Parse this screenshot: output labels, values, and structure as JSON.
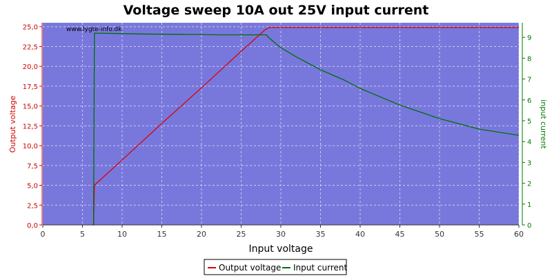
{
  "chart_data": {
    "type": "line",
    "title": "Voltage sweep 10A out 25V input current",
    "xlabel": "Input voltage",
    "ylabel_left": "Output voltage",
    "ylabel_right": "input current",
    "xlim": [
      0,
      60
    ],
    "ylim_left": [
      0,
      25.5
    ],
    "ylim_right": [
      0,
      9.7
    ],
    "x_ticks": [
      "0",
      "5",
      "10",
      "15",
      "20",
      "25",
      "30",
      "35",
      "40",
      "45",
      "50",
      "55",
      "60"
    ],
    "y_left_ticks": [
      "0,0",
      "2,5",
      "5,0",
      "7,5",
      "10,0",
      "12,5",
      "15,0",
      "17,5",
      "20,0",
      "22,5",
      "25,0"
    ],
    "y_right_ticks": [
      "0",
      "1",
      "2",
      "3",
      "4",
      "5",
      "6",
      "7",
      "8",
      "9"
    ],
    "grid": true,
    "watermark": "www.lygte-info.dk",
    "legend_position": "bottom-center",
    "colors": {
      "plot_bg": "#7878dc",
      "output_voltage": "#dd0000",
      "input_current": "#006e00"
    },
    "series": [
      {
        "name": "Output voltage",
        "axis": "left",
        "points": [
          [
            6.3,
            0.0
          ],
          [
            6.4,
            0.0
          ],
          [
            6.5,
            5.0
          ],
          [
            10,
            8.2
          ],
          [
            15,
            12.8
          ],
          [
            20,
            17.3
          ],
          [
            25,
            21.9
          ],
          [
            28.0,
            24.6
          ],
          [
            28.5,
            24.9
          ],
          [
            35,
            24.9
          ],
          [
            45,
            24.9
          ],
          [
            60,
            24.9
          ]
        ]
      },
      {
        "name": "Input current",
        "axis": "right",
        "points": [
          [
            6.3,
            0.0
          ],
          [
            6.4,
            0.0
          ],
          [
            6.5,
            9.2
          ],
          [
            10,
            9.18
          ],
          [
            12.5,
            9.16
          ],
          [
            19.3,
            9.14
          ],
          [
            22,
            9.12
          ],
          [
            28.2,
            9.12
          ],
          [
            28.3,
            9.05
          ],
          [
            30,
            8.5
          ],
          [
            32,
            8.05
          ],
          [
            35,
            7.45
          ],
          [
            38,
            6.95
          ],
          [
            40,
            6.55
          ],
          [
            45,
            5.75
          ],
          [
            50,
            5.1
          ],
          [
            55,
            4.6
          ],
          [
            60,
            4.3
          ]
        ]
      }
    ]
  }
}
